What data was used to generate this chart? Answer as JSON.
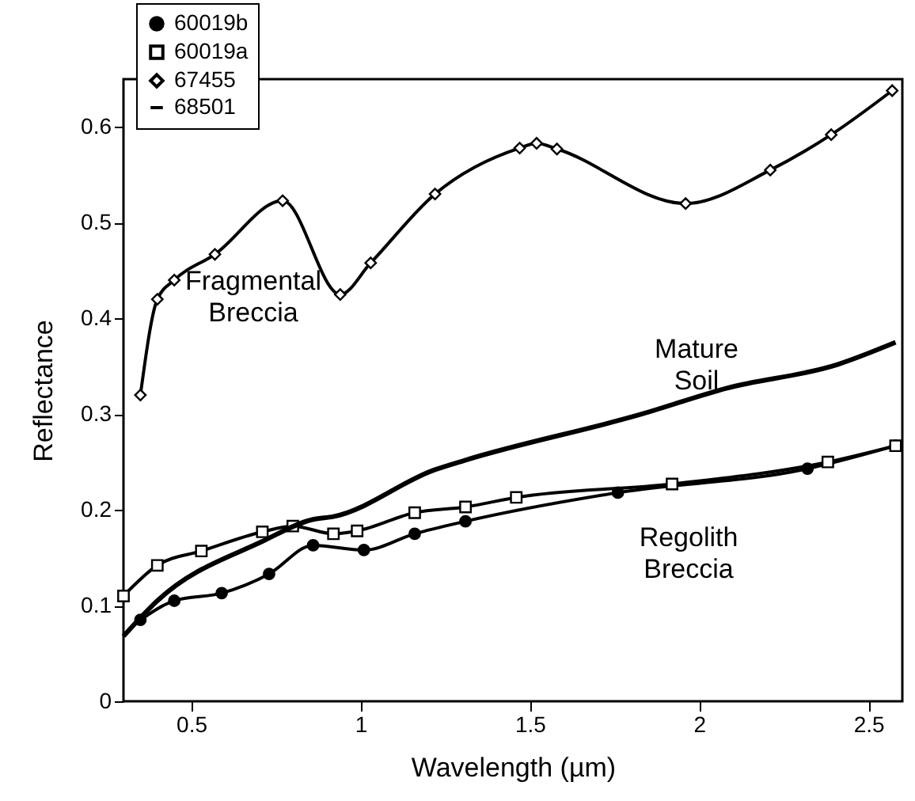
{
  "chart_data": {
    "type": "line",
    "xlabel": "Wavelength (µm)",
    "ylabel": "Reflectance",
    "xlim": [
      0.3,
      2.6
    ],
    "ylim": [
      0,
      0.65
    ],
    "xticks": [
      0.5,
      1,
      1.5,
      2,
      2.5
    ],
    "yticks": [
      0,
      0.1,
      0.2,
      0.3,
      0.4,
      0.5,
      0.6
    ],
    "grid": false,
    "legend": "top left",
    "annotations": [
      "Fragmental\nBreccia",
      "Mature\nSoil",
      "Regolith\nBreccia"
    ],
    "series": [
      {
        "name": "60019b",
        "color": "#000000",
        "marker": "circle",
        "x": [
          0.35,
          0.45,
          0.59,
          0.73,
          0.86,
          1.01,
          1.16,
          1.31,
          1.76,
          2.32,
          2.58
        ],
        "values": [
          0.085,
          0.105,
          0.113,
          0.133,
          0.163,
          0.158,
          0.175,
          0.188,
          0.218,
          0.243,
          0.267
        ]
      },
      {
        "name": "60019a",
        "color": "#000000",
        "marker": "square",
        "x": [
          0.3,
          0.4,
          0.53,
          0.71,
          0.8,
          0.92,
          0.99,
          1.16,
          1.31,
          1.46,
          1.92,
          2.38,
          2.58
        ],
        "values": [
          0.11,
          0.142,
          0.157,
          0.177,
          0.183,
          0.175,
          0.178,
          0.197,
          0.203,
          0.213,
          0.227,
          0.25,
          0.267
        ]
      },
      {
        "name": "67455",
        "color": "#000000",
        "marker": "diamond",
        "x": [
          0.35,
          0.4,
          0.45,
          0.57,
          0.77,
          0.94,
          1.03,
          1.22,
          1.47,
          1.52,
          1.58,
          1.96,
          2.21,
          2.39,
          2.57
        ],
        "values": [
          0.32,
          0.42,
          0.44,
          0.467,
          0.523,
          0.425,
          0.458,
          0.53,
          0.578,
          0.583,
          0.577,
          0.52,
          0.555,
          0.592,
          0.638
        ]
      },
      {
        "name": "68501",
        "color": "#000000",
        "marker": "none",
        "x": [
          0.3,
          0.4,
          0.71,
          0.86,
          0.92,
          1.22,
          1.31,
          1.83,
          2.08,
          2.41,
          2.58
        ],
        "values": [
          0.068,
          0.105,
          0.167,
          0.19,
          0.193,
          0.242,
          0.252,
          0.3,
          0.327,
          0.352,
          0.375
        ]
      }
    ]
  }
}
